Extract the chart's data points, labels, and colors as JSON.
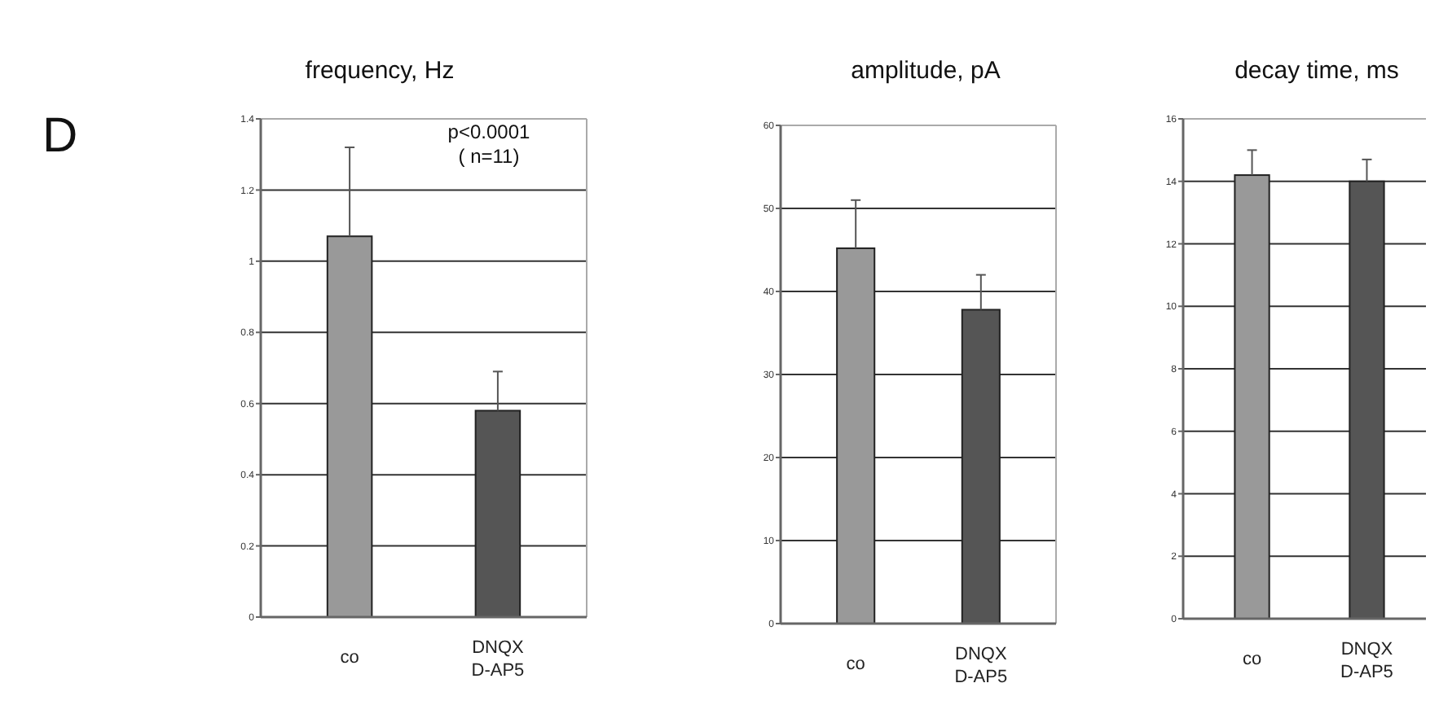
{
  "chart_data": [
    {
      "type": "bar",
      "title": "frequency, Hz",
      "categories": [
        "co",
        "DNQX D-AP5"
      ],
      "values": [
        1.07,
        0.58
      ],
      "colors": [
        "#999999",
        "#555555"
      ],
      "errors": [
        0.25,
        0.11
      ],
      "ylim": [
        0,
        1.4
      ],
      "yticks": [
        0,
        0.2,
        0.4,
        0.6,
        0.8,
        1,
        1.2,
        1.4
      ],
      "grid": "y",
      "annotations": [
        "D",
        "p<0.0001",
        "( n=11)"
      ]
    },
    {
      "type": "bar",
      "title": "amplitude, pA",
      "categories": [
        "co",
        "DNQX D-AP5"
      ],
      "values": [
        45.2,
        37.8
      ],
      "colors": [
        "#999999",
        "#555555"
      ],
      "errors": [
        5.8,
        4.2
      ],
      "ylim": [
        0,
        60
      ],
      "yticks": [
        0,
        10,
        20,
        30,
        40,
        50,
        60
      ],
      "grid": "y"
    },
    {
      "type": "bar",
      "title": "decay time, ms",
      "categories": [
        "co",
        "DNQX D-AP5"
      ],
      "values": [
        14.2,
        14.0
      ],
      "colors": [
        "#999999",
        "#555555"
      ],
      "errors": [
        0.8,
        0.7
      ],
      "ylim": [
        0,
        16
      ],
      "yticks": [
        0,
        2,
        4,
        6,
        8,
        10,
        12,
        14,
        16
      ],
      "grid": "y"
    }
  ]
}
